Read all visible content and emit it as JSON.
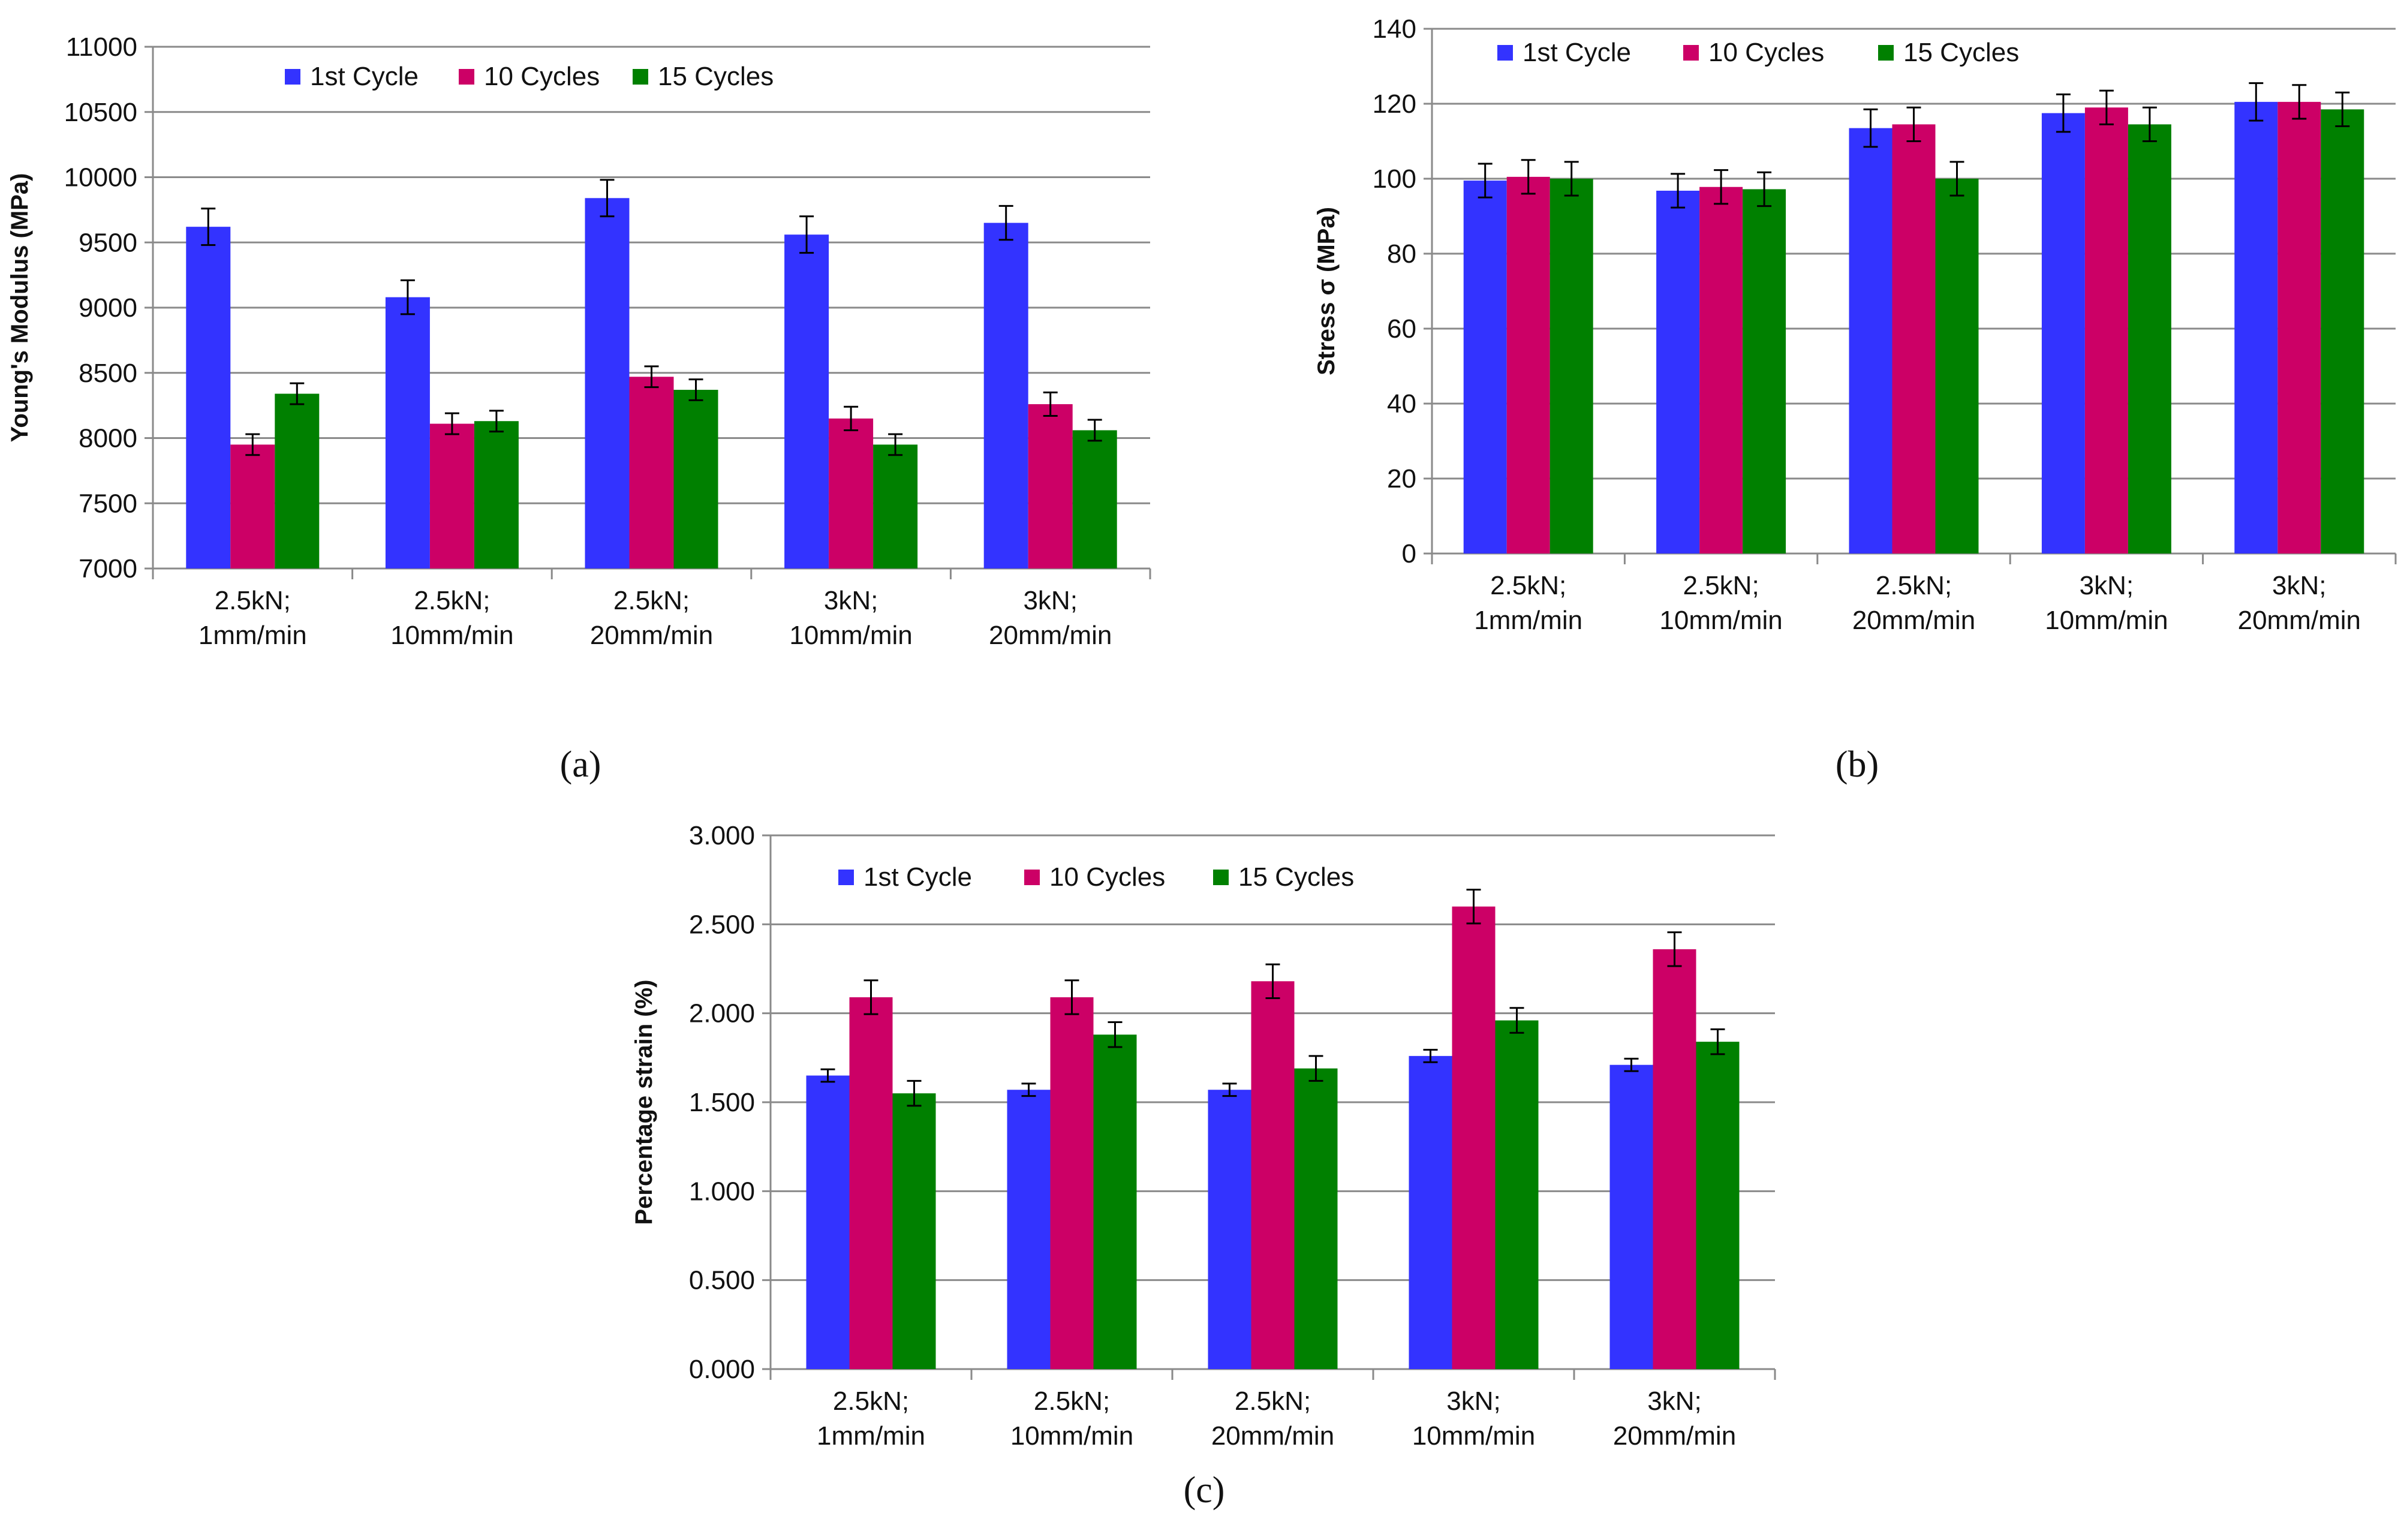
{
  "colors": {
    "series": [
      "#3333ff",
      "#cc0066",
      "#008000"
    ],
    "grid": "#8a8a8a",
    "axis": "#8a8a8a",
    "errorbar": "#000000"
  },
  "chart_data": [
    {
      "id": "a",
      "panel_label": "(a)",
      "type": "bar",
      "ylabel": "Young's Modulus (MPa)",
      "ylim": [
        7000,
        11000
      ],
      "ytick_step": 500,
      "ytick_decimals": 0,
      "grid": true,
      "legend": "top",
      "categories": [
        [
          "2.5kN;",
          "1mm/min"
        ],
        [
          "2.5kN;",
          "10mm/min"
        ],
        [
          "2.5kN;",
          "20mm/min"
        ],
        [
          "3kN;",
          "10mm/min"
        ],
        [
          "3kN;",
          "20mm/min"
        ]
      ],
      "series": [
        {
          "name": "1st Cycle",
          "values": [
            9620,
            9080,
            9840,
            9560,
            9650
          ],
          "errors": [
            140,
            130,
            140,
            140,
            130
          ]
        },
        {
          "name": "10 Cycles",
          "values": [
            7950,
            8110,
            8470,
            8150,
            8260
          ],
          "errors": [
            80,
            80,
            80,
            90,
            90
          ]
        },
        {
          "name": "15 Cycles",
          "values": [
            8340,
            8130,
            8370,
            7950,
            8060
          ],
          "errors": [
            80,
            80,
            80,
            80,
            80
          ]
        }
      ]
    },
    {
      "id": "b",
      "panel_label": "(b)",
      "type": "bar",
      "ylabel": "Stress σ (MPa)",
      "ylim": [
        0,
        140
      ],
      "ytick_step": 20,
      "ytick_decimals": 0,
      "grid": true,
      "legend": "top",
      "categories": [
        [
          "2.5kN;",
          "1mm/min"
        ],
        [
          "2.5kN;",
          "10mm/min"
        ],
        [
          "2.5kN;",
          "20mm/min"
        ],
        [
          "3kN;",
          "10mm/min"
        ],
        [
          "3kN;",
          "20mm/min"
        ]
      ],
      "series": [
        {
          "name": "1st Cycle",
          "values": [
            99.5,
            96.8,
            113.5,
            117.5,
            120.5
          ],
          "errors": [
            4.5,
            4.5,
            5,
            5,
            5
          ]
        },
        {
          "name": "10 Cycles",
          "values": [
            100.5,
            97.8,
            114.5,
            119,
            120.5
          ],
          "errors": [
            4.5,
            4.5,
            4.5,
            4.5,
            4.5
          ]
        },
        {
          "name": "15 Cycles",
          "values": [
            100,
            97.2,
            100,
            114.5,
            118.5
          ],
          "errors": [
            4.5,
            4.5,
            4.5,
            4.5,
            4.5
          ]
        }
      ]
    },
    {
      "id": "c",
      "panel_label": "(c)",
      "type": "bar",
      "ylabel": "Percentage strain (%)",
      "ylim": [
        0,
        3
      ],
      "ytick_step": 0.5,
      "ytick_decimals": 3,
      "grid": true,
      "legend": "top",
      "categories": [
        [
          "2.5kN;",
          "1mm/min"
        ],
        [
          "2.5kN;",
          "10mm/min"
        ],
        [
          "2.5kN;",
          "20mm/min"
        ],
        [
          "3kN;",
          "10mm/min"
        ],
        [
          "3kN;",
          "20mm/min"
        ]
      ],
      "series": [
        {
          "name": "1st Cycle",
          "values": [
            1.65,
            1.57,
            1.57,
            1.76,
            1.71
          ],
          "errors": [
            0.035,
            0.035,
            0.035,
            0.035,
            0.035
          ]
        },
        {
          "name": "10 Cycles",
          "values": [
            2.09,
            2.09,
            2.18,
            2.6,
            2.36
          ],
          "errors": [
            0.095,
            0.095,
            0.095,
            0.095,
            0.095
          ]
        },
        {
          "name": "15 Cycles",
          "values": [
            1.55,
            1.88,
            1.69,
            1.96,
            1.84
          ],
          "errors": [
            0.07,
            0.07,
            0.07,
            0.07,
            0.07
          ]
        }
      ]
    }
  ]
}
